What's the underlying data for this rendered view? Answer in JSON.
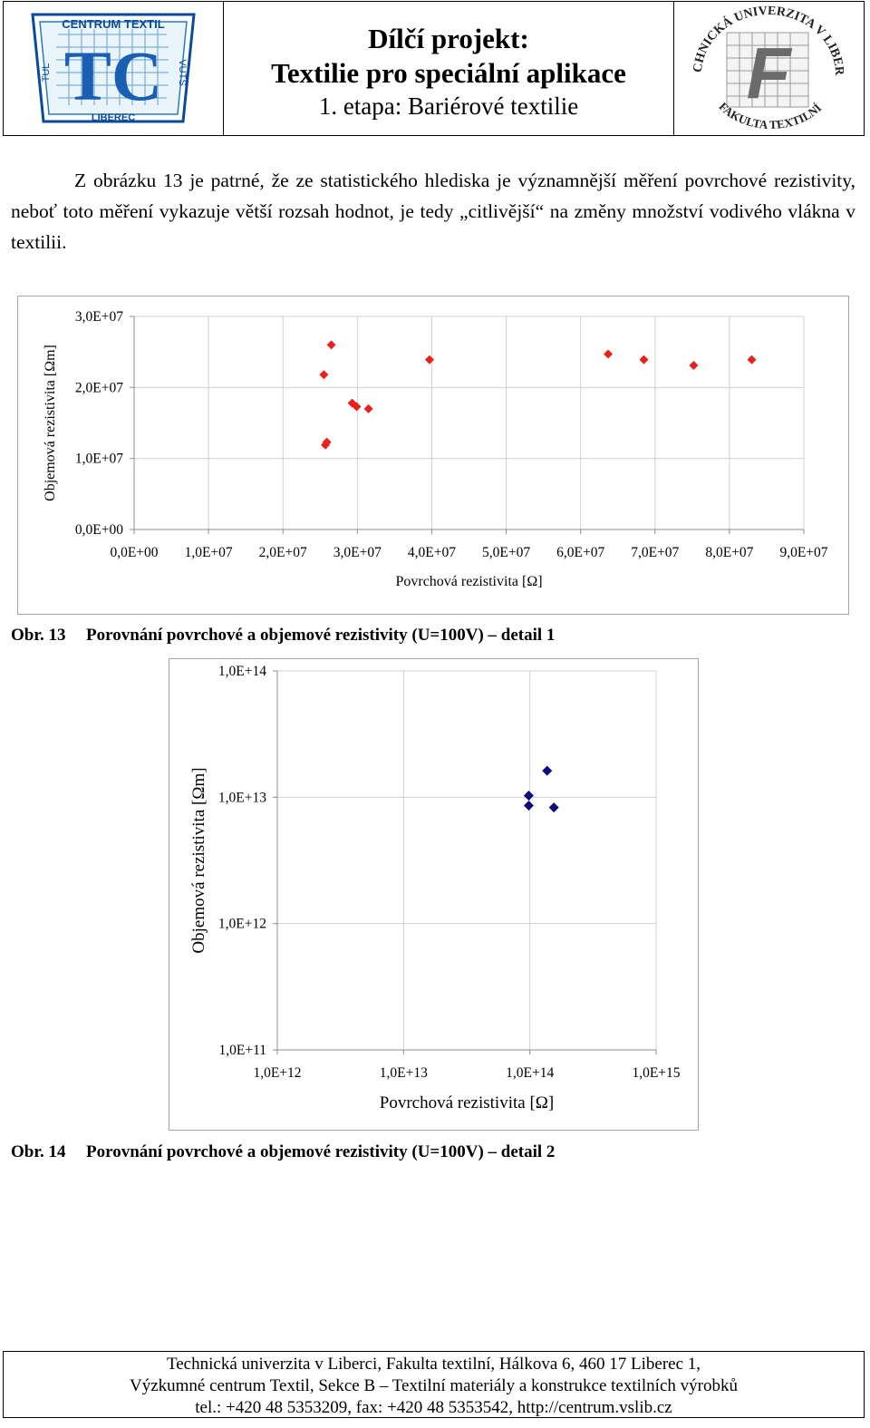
{
  "header": {
    "left_logo": {
      "text_top": "CENTRUM TEXTIL",
      "text_left": "TUL",
      "text_right": "VÚTS",
      "text_bottom": "LIBEREC",
      "monogram": "TC"
    },
    "title_line1": "Dílčí projekt:",
    "title_line2": "Textilie pro speciální aplikace",
    "title_line3": "1. etapa: Bariérové textilie",
    "right_logo": {
      "text_top": "TECHNICKÁ UNIVERZITA V LIBERCI",
      "text_bottom": "FAKULTA TEXTILNÍ",
      "monogram": "F"
    }
  },
  "intro_text": "Z obrázku 13 je patrné, že ze statistického hlediska je významnější měření povrchové rezistivity, neboť toto měření vykazuje větší rozsah hodnot, je tedy „citlivější“ na změny množství vodivého vlákna v textilii.",
  "captions": {
    "fig13_num": "Obr. 13",
    "fig13_text": "Porovnání povrchové a objemové rezistivity (U=100V) – detail 1",
    "fig14_num": "Obr. 14",
    "fig14_text": "Porovnání povrchové a objemové rezistivity (U=100V) – detail 2"
  },
  "footer": {
    "line1": "Technická univerzita v Liberci, Fakulta textilní, Hálkova 6, 460 17 Liberec 1,",
    "line2": "Výzkumné centrum Textil, Sekce B – Textilní materiály a konstrukce textilních výrobků",
    "line3": "tel.: +420 48 5353209, fax: +420 48 5353542, http://centrum.vslib.cz"
  },
  "chart_data": [
    {
      "type": "scatter",
      "xlabel": "Povrchová rezistivita [Ω]",
      "ylabel": "Objemová rezistivita [Ωm]",
      "xlim": [
        0,
        90000000
      ],
      "ylim": [
        0,
        30000000
      ],
      "x_ticks": [
        "0,0E+00",
        "1,0E+07",
        "2,0E+07",
        "3,0E+07",
        "4,0E+07",
        "5,0E+07",
        "6,0E+07",
        "7,0E+07",
        "8,0E+07",
        "9,0E+07"
      ],
      "y_ticks": [
        "0,0E+00",
        "1,0E+07",
        "2,0E+07",
        "3,0E+07"
      ],
      "grid": true,
      "marker_color": "#e8211c",
      "points": [
        [
          26500000,
          26000000
        ],
        [
          25500000,
          21800000
        ],
        [
          25900000,
          12300000
        ],
        [
          25700000,
          11900000
        ],
        [
          29300000,
          17800000
        ],
        [
          29900000,
          17300000
        ],
        [
          31500000,
          17000000
        ],
        [
          39700000,
          23900000
        ],
        [
          63700000,
          24700000
        ],
        [
          68500000,
          23900000
        ],
        [
          75200000,
          23100000
        ],
        [
          83000000,
          23900000
        ]
      ]
    },
    {
      "type": "scatter",
      "xlabel": "Povrchová rezistivita [Ω]",
      "ylabel": "Objemová rezistivita [Ωm]",
      "x_scale": "log",
      "y_scale": "log",
      "xlim": [
        1000000000000.0,
        1000000000000000.0
      ],
      "ylim": [
        100000000000.0,
        100000000000000.0
      ],
      "x_ticks": [
        "1,0E+12",
        "1,0E+13",
        "1,0E+14",
        "1,0E+15"
      ],
      "y_ticks": [
        "1,0E+11",
        "1,0E+12",
        "1,0E+13",
        "1,0E+14"
      ],
      "grid": true,
      "marker_color": "#0a0a78",
      "points": [
        [
          137000000000000.0,
          16200000000000.0
        ],
        [
          98000000000000.0,
          10300000000000.0
        ],
        [
          98000000000000.0,
          8600000000000.0
        ],
        [
          155000000000000.0,
          8300000000000.0
        ]
      ]
    }
  ]
}
